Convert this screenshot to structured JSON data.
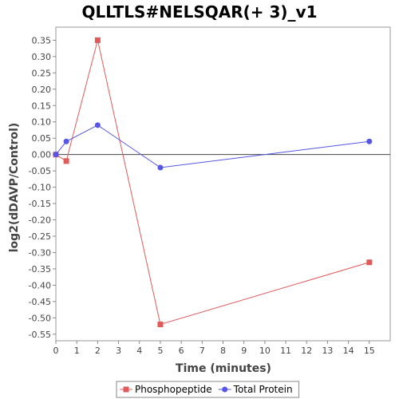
{
  "chart_data": {
    "type": "line",
    "title": "QLLTLS#NELSQAR(+ 3)_v1",
    "xlabel": "Time (minutes)",
    "ylabel": "log2(dDAVP/Control)",
    "xlim": [
      0,
      16
    ],
    "ylim": [
      -0.57,
      0.39
    ],
    "x_ticks": [
      0,
      1,
      2,
      3,
      4,
      5,
      6,
      7,
      8,
      9,
      10,
      11,
      12,
      13,
      14,
      15
    ],
    "y_ticks": [
      0.35,
      0.3,
      0.25,
      0.2,
      0.15,
      0.1,
      0.05,
      0.0,
      -0.05,
      -0.1,
      -0.15,
      -0.2,
      -0.25,
      -0.3,
      -0.35,
      -0.4,
      -0.45,
      -0.5,
      -0.55
    ],
    "grid": false,
    "zero_line": true,
    "legend_position": "bottom",
    "series": [
      {
        "name": "Phosphopeptide",
        "marker": "square",
        "color": "#e05a5a",
        "x": [
          0,
          0.5,
          2,
          5,
          15
        ],
        "y": [
          0.0,
          -0.02,
          0.35,
          -0.52,
          -0.33
        ]
      },
      {
        "name": "Total Protein",
        "marker": "circle",
        "color": "#5555e6",
        "x": [
          0,
          0.5,
          2,
          5,
          15
        ],
        "y": [
          0.0,
          0.04,
          0.09,
          -0.04,
          0.04
        ]
      }
    ]
  }
}
